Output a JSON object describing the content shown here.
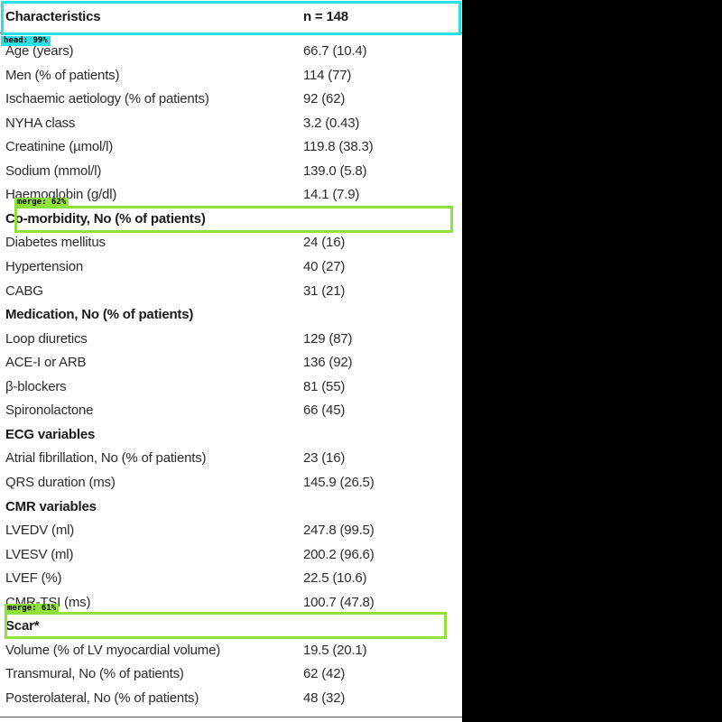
{
  "table": {
    "header": {
      "label": "Characteristics",
      "value": "n = 148"
    },
    "rows": [
      {
        "label": "Age (years)",
        "value": "66.7 (10.4)"
      },
      {
        "label": "Men (% of patients)",
        "value": "114 (77)"
      },
      {
        "label": "Ischaemic aetiology (% of patients)",
        "value": "92 (62)"
      },
      {
        "label": "NYHA class",
        "value": "3.2 (0.43)"
      },
      {
        "label": "Creatinine (µmol/l)",
        "value": "119.8 (38.3)"
      },
      {
        "label": "Sodium (mmol/l)",
        "value": "139.0 (5.8)"
      },
      {
        "label": "Haemoglobin (g/dl)",
        "value": "14.1 (7.9)"
      },
      {
        "label": "Co-morbidity, No (% of patients)",
        "value": "",
        "section": true
      },
      {
        "label": "Diabetes mellitus",
        "value": "24 (16)"
      },
      {
        "label": "Hypertension",
        "value": "40 (27)"
      },
      {
        "label": "CABG",
        "value": "31 (21)"
      },
      {
        "label": "Medication, No (% of patients)",
        "value": "",
        "section": true
      },
      {
        "label": "Loop diuretics",
        "value": "129 (87)"
      },
      {
        "label": "ACE-I or ARB",
        "value": "136 (92)"
      },
      {
        "label": "β-blockers",
        "value": "81 (55)"
      },
      {
        "label": "Spironolactone",
        "value": "66 (45)"
      },
      {
        "label": "ECG variables",
        "value": "",
        "section": true
      },
      {
        "label": "Atrial fibrillation, No (% of patients)",
        "value": "23 (16)"
      },
      {
        "label": "QRS duration (ms)",
        "value": "145.9 (26.5)"
      },
      {
        "label": "CMR variables",
        "value": "",
        "section": true
      },
      {
        "label": "LVEDV (ml)",
        "value": "247.8 (99.5)"
      },
      {
        "label": "LVESV (ml)",
        "value": "200.2 (96.6)"
      },
      {
        "label": "LVEF (%)",
        "value": "22.5 (10.6)"
      },
      {
        "label": "CMR-TSI (ms)",
        "value": "100.7 (47.8)"
      },
      {
        "label": "Scar*",
        "value": "",
        "section": true
      },
      {
        "label": "Volume (% of LV myocardial volume)",
        "value": "19.5 (20.1)"
      },
      {
        "label": "Transmural, No (% of patients)",
        "value": "62 (42)"
      },
      {
        "label": "Posterolateral, No (% of patients)",
        "value": "48 (32)"
      }
    ]
  },
  "detections": [
    {
      "tag": "head: 99%",
      "color": "#27e1e6"
    },
    {
      "tag": "merge: 62%",
      "color": "#8fe23a"
    },
    {
      "tag": "merge: 61%",
      "color": "#8fe23a"
    }
  ]
}
